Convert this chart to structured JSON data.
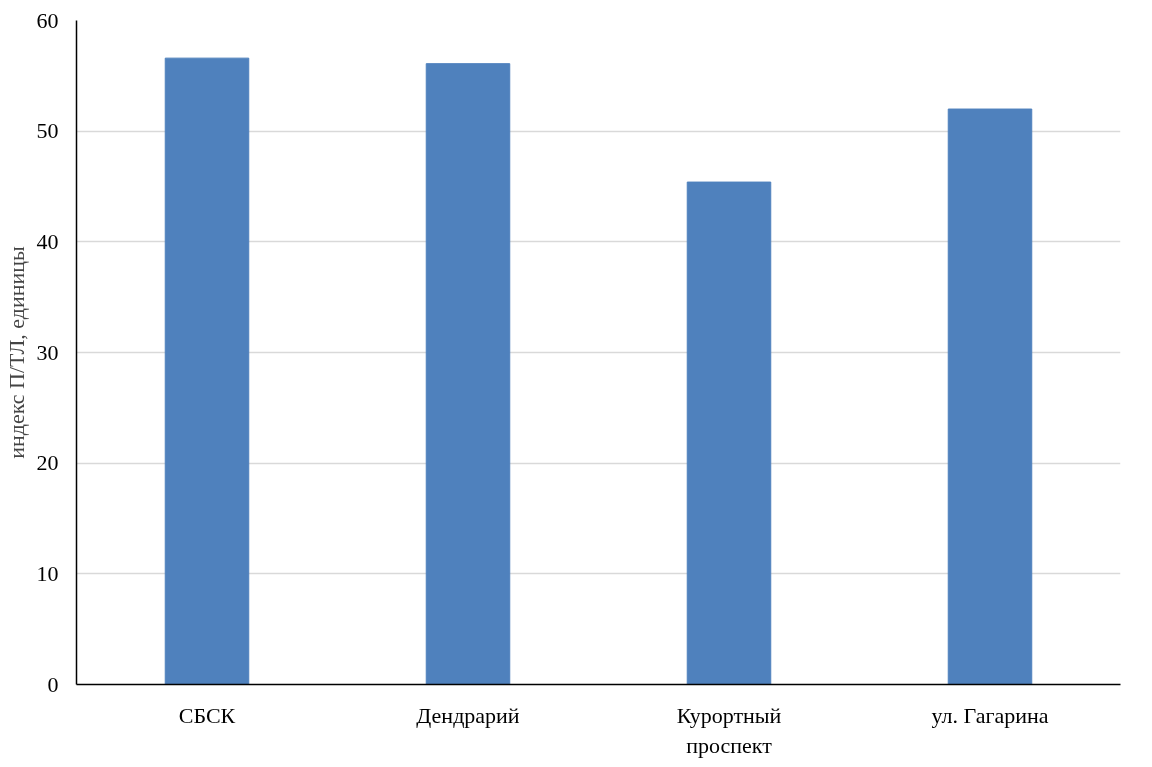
{
  "chart_data": {
    "type": "bar",
    "ylabel": "индекс П/ТЛ, единицы",
    "categories": [
      "СБСК",
      "Дендрарий",
      "Курортный проспект",
      "ул. Гагарина"
    ],
    "values": [
      56.6,
      56.1,
      45.4,
      52.0
    ],
    "color": "#4f81bd",
    "ylim": [
      0,
      60
    ],
    "yticks": [
      0,
      10,
      20,
      30,
      40,
      50,
      60
    ],
    "grid": "y"
  }
}
